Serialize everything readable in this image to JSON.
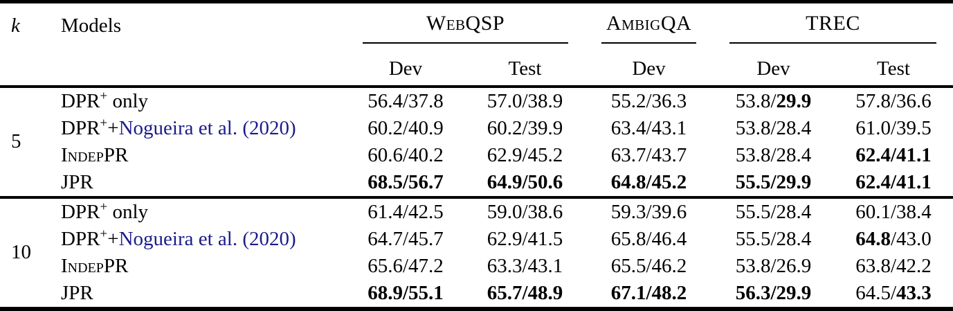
{
  "colors": {
    "citation_link": "#1b1b8a",
    "text": "#000000",
    "background": "#ffffff"
  },
  "table": {
    "corner": {
      "k_label": "k",
      "models_label": "Models"
    },
    "col_groups": [
      {
        "name": "WebQSP",
        "cols": [
          "Dev",
          "Test"
        ]
      },
      {
        "name": "AmbigQA",
        "cols": [
          "Dev"
        ]
      },
      {
        "name": "TREC",
        "cols": [
          "Dev",
          "Test"
        ]
      }
    ],
    "groups": [
      {
        "k": "5",
        "rows": [
          {
            "model": {
              "pre": "DPR",
              "sup": "+",
              "post": " only",
              "cite": "",
              "sc": false
            },
            "cells": [
              {
                "v": "56.4/37.8",
                "bold": "none"
              },
              {
                "v": "57.0/38.9",
                "bold": "none"
              },
              {
                "v": "55.2/36.3",
                "bold": "none"
              },
              {
                "v": "53.8/29.9",
                "bold": "b"
              },
              {
                "v": "57.8/36.6",
                "bold": "none"
              }
            ]
          },
          {
            "model": {
              "pre": "DPR",
              "sup": "+",
              "post": "+",
              "cite": "Nogueira et al. (2020)",
              "sc": false
            },
            "cells": [
              {
                "v": "60.2/40.9",
                "bold": "none"
              },
              {
                "v": "60.2/39.9",
                "bold": "none"
              },
              {
                "v": "63.4/43.1",
                "bold": "none"
              },
              {
                "v": "53.8/28.4",
                "bold": "none"
              },
              {
                "v": "61.0/39.5",
                "bold": "none"
              }
            ]
          },
          {
            "model": {
              "pre": "IndepPR",
              "sup": "",
              "post": "",
              "cite": "",
              "sc": true
            },
            "cells": [
              {
                "v": "60.6/40.2",
                "bold": "none"
              },
              {
                "v": "62.9/45.2",
                "bold": "none"
              },
              {
                "v": "63.7/43.7",
                "bold": "none"
              },
              {
                "v": "53.8/28.4",
                "bold": "none"
              },
              {
                "v": "62.4/41.1",
                "bold": "all"
              }
            ]
          },
          {
            "model": {
              "pre": "JPR",
              "sup": "",
              "post": "",
              "cite": "",
              "sc": false
            },
            "cells": [
              {
                "v": "68.5/56.7",
                "bold": "all"
              },
              {
                "v": "64.9/50.6",
                "bold": "all"
              },
              {
                "v": "64.8/45.2",
                "bold": "all"
              },
              {
                "v": "55.5/29.9",
                "bold": "all"
              },
              {
                "v": "62.4/41.1",
                "bold": "all"
              }
            ]
          }
        ]
      },
      {
        "k": "10",
        "rows": [
          {
            "model": {
              "pre": "DPR",
              "sup": "+",
              "post": " only",
              "cite": "",
              "sc": false
            },
            "cells": [
              {
                "v": "61.4/42.5",
                "bold": "none"
              },
              {
                "v": "59.0/38.6",
                "bold": "none"
              },
              {
                "v": "59.3/39.6",
                "bold": "none"
              },
              {
                "v": "55.5/28.4",
                "bold": "none"
              },
              {
                "v": "60.1/38.4",
                "bold": "none"
              }
            ]
          },
          {
            "model": {
              "pre": "DPR",
              "sup": "+",
              "post": "+",
              "cite": "Nogueira et al. (2020)",
              "sc": false
            },
            "cells": [
              {
                "v": "64.7/45.7",
                "bold": "none"
              },
              {
                "v": "62.9/41.5",
                "bold": "none"
              },
              {
                "v": "65.8/46.4",
                "bold": "none"
              },
              {
                "v": "55.5/28.4",
                "bold": "none"
              },
              {
                "v": "64.8/43.0",
                "bold": "a"
              }
            ]
          },
          {
            "model": {
              "pre": "IndepPR",
              "sup": "",
              "post": "",
              "cite": "",
              "sc": true
            },
            "cells": [
              {
                "v": "65.6/47.2",
                "bold": "none"
              },
              {
                "v": "63.3/43.1",
                "bold": "none"
              },
              {
                "v": "65.5/46.2",
                "bold": "none"
              },
              {
                "v": "53.8/26.9",
                "bold": "none"
              },
              {
                "v": "63.8/42.2",
                "bold": "none"
              }
            ]
          },
          {
            "model": {
              "pre": "JPR",
              "sup": "",
              "post": "",
              "cite": "",
              "sc": false
            },
            "cells": [
              {
                "v": "68.9/55.1",
                "bold": "all"
              },
              {
                "v": "65.7/48.9",
                "bold": "all"
              },
              {
                "v": "67.1/48.2",
                "bold": "all"
              },
              {
                "v": "56.3/29.9",
                "bold": "all"
              },
              {
                "v": "64.5/43.3",
                "bold": "b"
              }
            ]
          }
        ]
      }
    ]
  }
}
